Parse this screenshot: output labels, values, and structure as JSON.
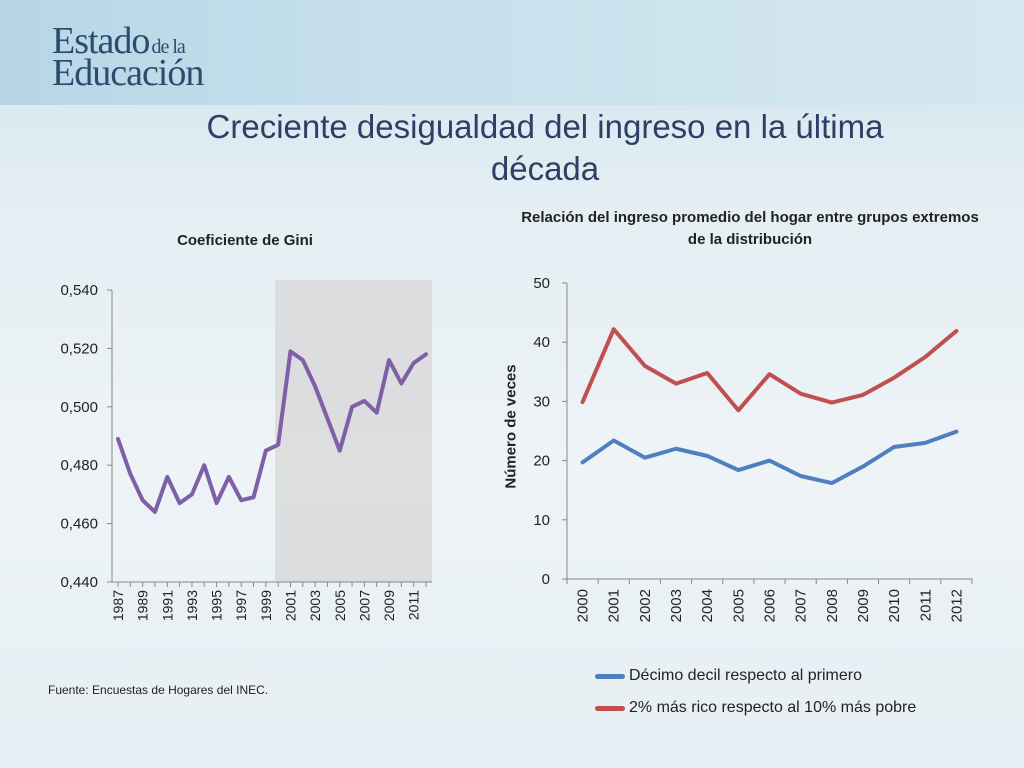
{
  "logo": {
    "line1": "Estado",
    "line1_small": "de la",
    "line2": "Educación"
  },
  "title": "Creciente desigualdad del ingreso en la última década",
  "source": "Fuente: Encuestas de Hogares del INEC.",
  "chart_data": [
    {
      "type": "line",
      "title": "Coeficiente de Gini",
      "xlabel": "",
      "ylabel": "",
      "x": [
        1987,
        1988,
        1989,
        1990,
        1991,
        1992,
        1993,
        1994,
        1995,
        1996,
        1997,
        1998,
        1999,
        2000,
        2001,
        2002,
        2003,
        2004,
        2005,
        2006,
        2007,
        2008,
        2009,
        2010,
        2011,
        2012
      ],
      "x_tick_labels": [
        "1987",
        "1989",
        "1991",
        "1993",
        "1995",
        "1997",
        "1999",
        "2001",
        "2003",
        "2005",
        "2007",
        "2009",
        "2011"
      ],
      "y_tick_labels": [
        "0,440",
        "0,460",
        "0,480",
        "0,500",
        "0,520",
        "0,540"
      ],
      "ylim": [
        0.44,
        0.54
      ],
      "shaded_region": [
        2000,
        2012
      ],
      "series": [
        {
          "color": "#7f5fa8",
          "values": [
            0.489,
            0.477,
            0.468,
            0.464,
            0.476,
            0.467,
            0.47,
            0.48,
            0.467,
            0.476,
            0.468,
            0.469,
            0.485,
            0.487,
            0.519,
            0.516,
            0.507,
            0.496,
            0.485,
            0.5,
            0.502,
            0.498,
            0.516,
            0.508,
            0.515,
            0.518
          ]
        }
      ]
    },
    {
      "type": "line",
      "title": "Relación del ingreso promedio del hogar entre grupos extremos de la distribución",
      "xlabel": "",
      "ylabel": "Número de veces",
      "x": [
        2000,
        2001,
        2002,
        2003,
        2004,
        2005,
        2006,
        2007,
        2008,
        2009,
        2010,
        2011,
        2012
      ],
      "x_tick_labels": [
        "2000",
        "2001",
        "2002",
        "2003",
        "2004",
        "2005",
        "2006",
        "2007",
        "2008",
        "2009",
        "2010",
        "2011",
        "2012"
      ],
      "y_tick_labels": [
        "0",
        "10",
        "20",
        "30",
        "40",
        "50"
      ],
      "ylim": [
        0,
        50
      ],
      "legend": "bottom",
      "series": [
        {
          "name": "Décimo decil respecto al primero",
          "color": "#4f7fbf",
          "values": [
            19.7,
            23.4,
            20.5,
            22.0,
            20.8,
            18.4,
            20.0,
            17.4,
            16.2,
            19.0,
            22.3,
            23.0,
            24.9
          ]
        },
        {
          "name": "2% más rico respecto al 10% más pobre",
          "color": "#c0504d",
          "values": [
            29.9,
            42.2,
            36.0,
            33.0,
            34.8,
            28.5,
            34.6,
            31.3,
            29.8,
            31.1,
            34.0,
            37.5,
            41.9
          ]
        }
      ]
    }
  ]
}
